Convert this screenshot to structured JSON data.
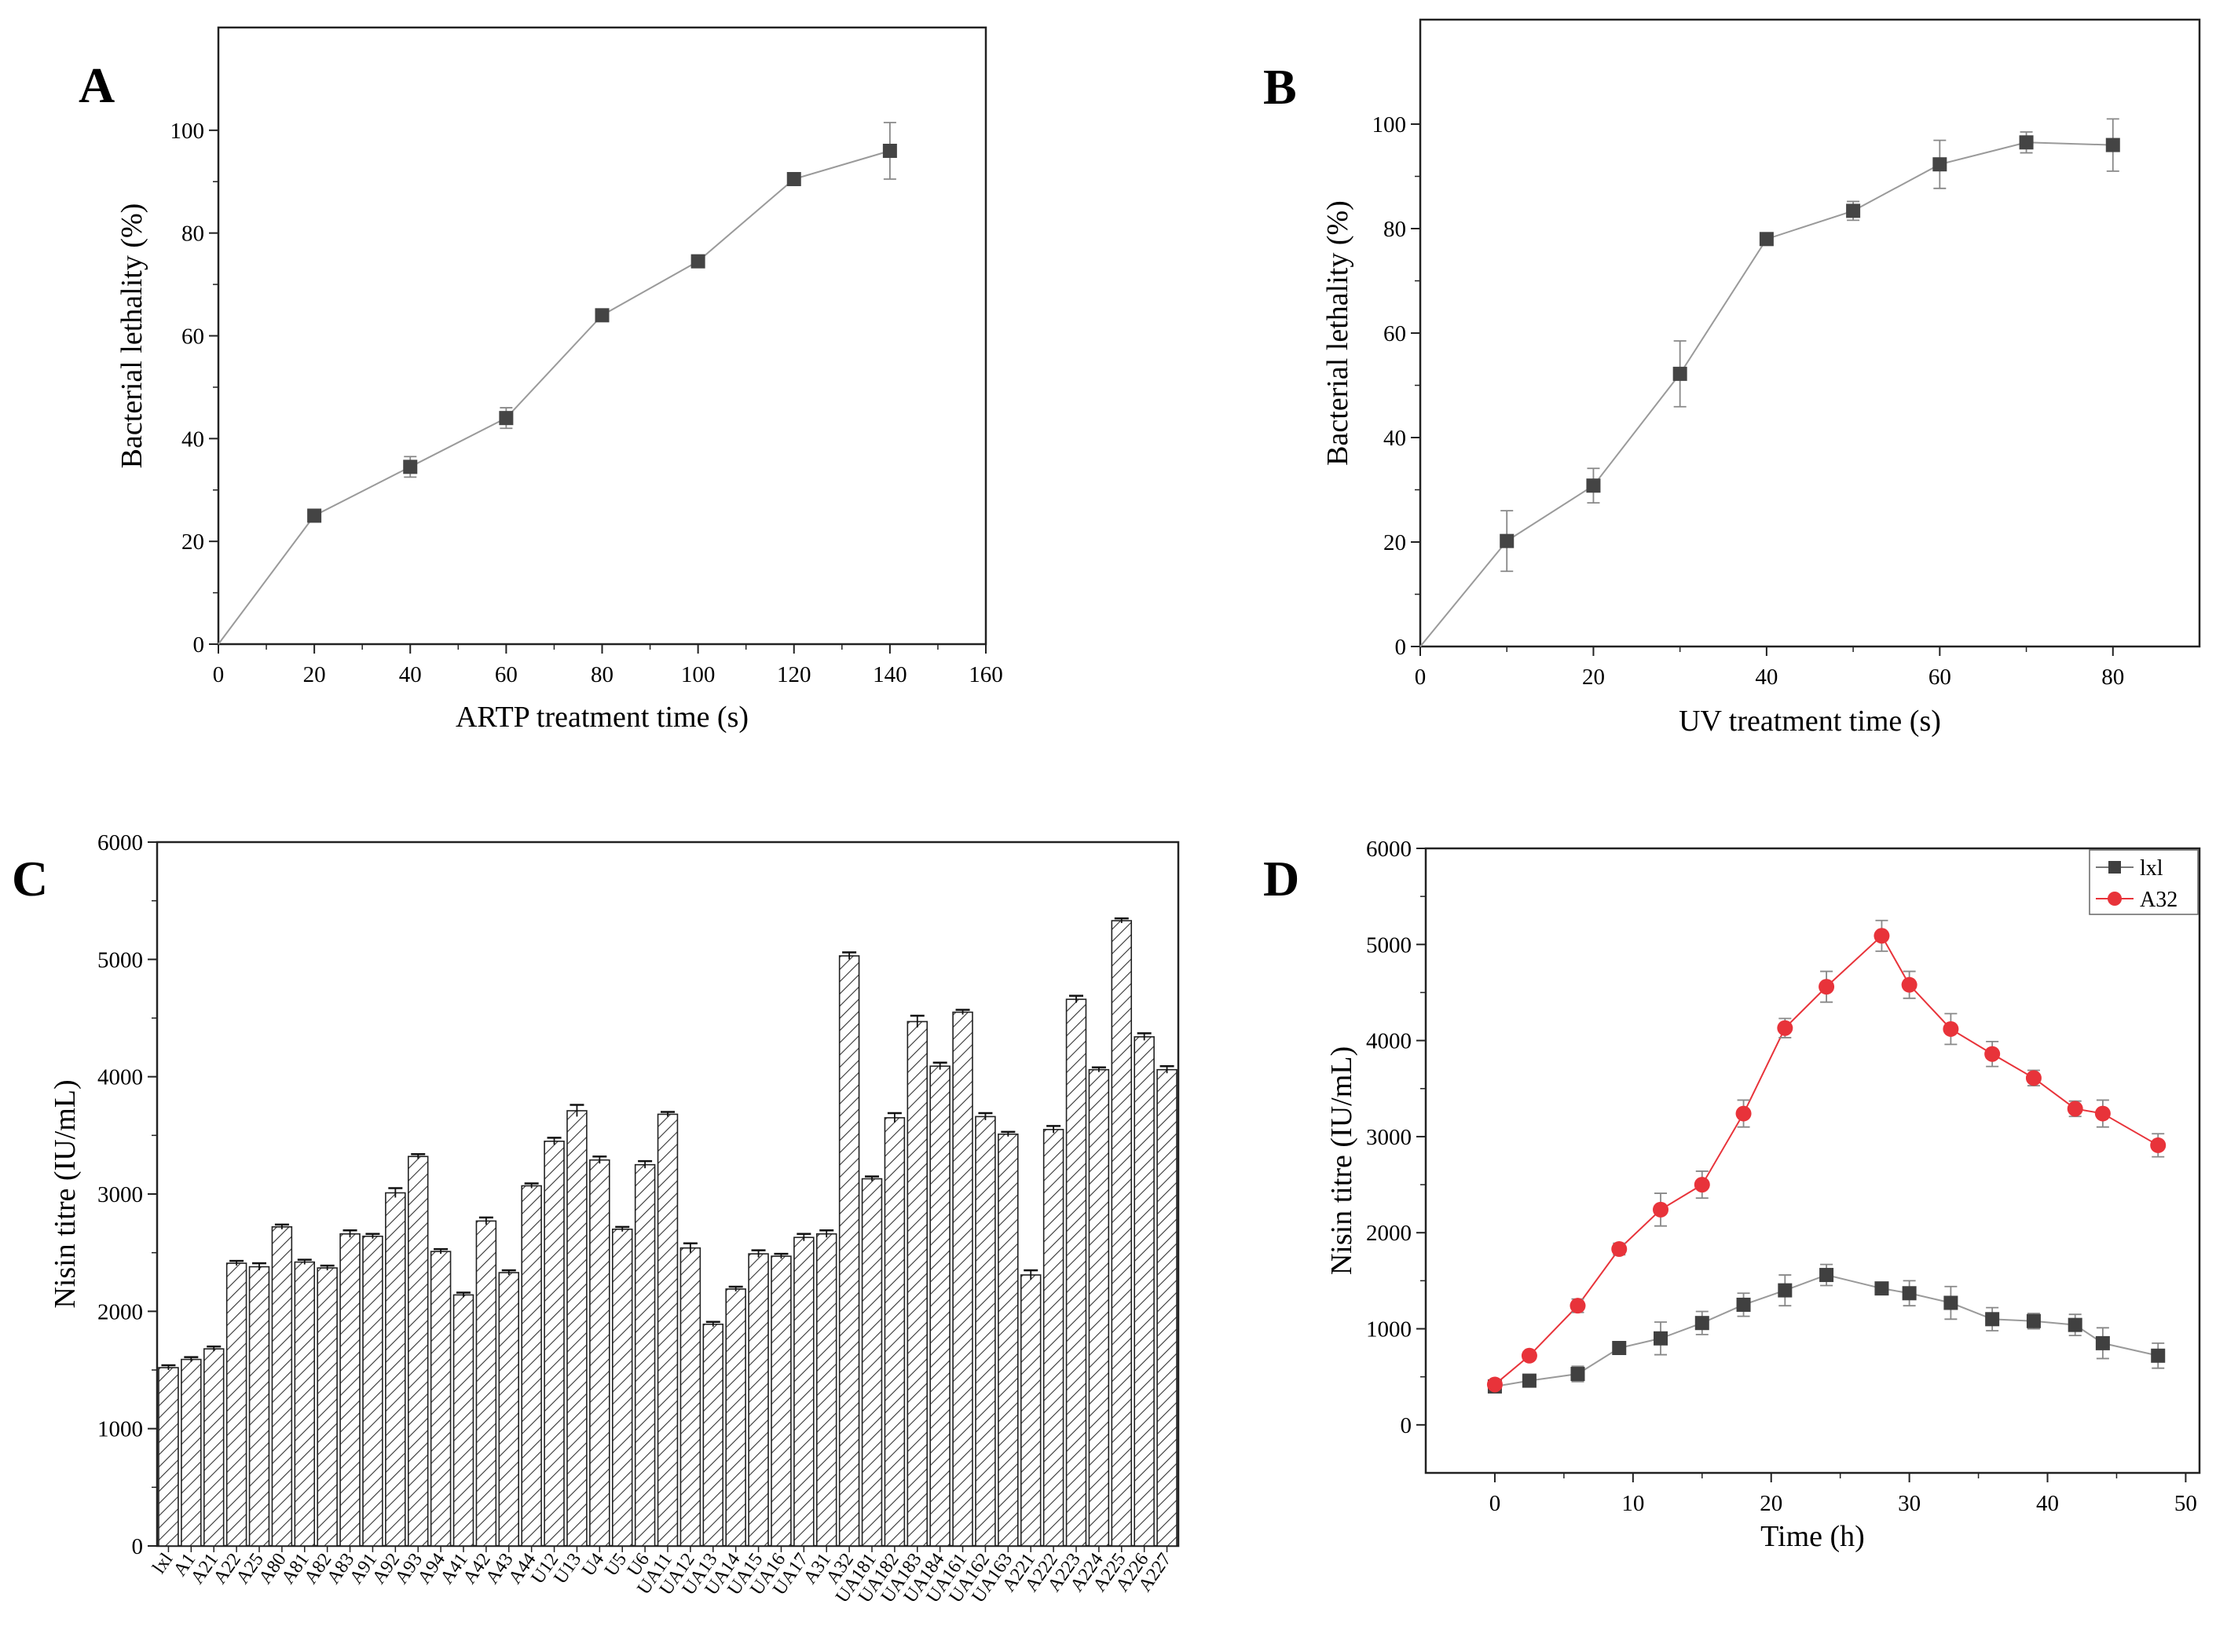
{
  "chart_data": [
    {
      "panel": "A",
      "type": "line",
      "xlabel": "ARTP treatment time (s)",
      "ylabel": "Bacterial lethality (%)",
      "xlim": [
        0,
        160
      ],
      "ylim": [
        0,
        120
      ],
      "xticks": [
        0,
        20,
        40,
        60,
        80,
        100,
        120,
        140,
        160
      ],
      "yticks": [
        0,
        20,
        40,
        60,
        80,
        100
      ],
      "series": [
        {
          "name": "lethality",
          "color": "#444444",
          "marker": "square",
          "x": [
            0,
            20,
            40,
            60,
            80,
            100,
            120,
            140
          ],
          "y": [
            0,
            25,
            34.5,
            44,
            64,
            74.5,
            90.5,
            96
          ],
          "err": [
            0,
            0.5,
            2,
            2,
            0.5,
            0.5,
            1,
            5.5
          ]
        }
      ]
    },
    {
      "panel": "B",
      "type": "line",
      "xlabel": "UV treatment time (s)",
      "ylabel": "Bacterial lethality (%)",
      "xlim": [
        0,
        90
      ],
      "ylim": [
        0,
        120
      ],
      "xticks": [
        0,
        20,
        40,
        60,
        80
      ],
      "yticks": [
        0,
        20,
        40,
        60,
        80,
        100
      ],
      "series": [
        {
          "name": "lethality",
          "color": "#444444",
          "marker": "square",
          "x": [
            0,
            10,
            20,
            30,
            40,
            50,
            60,
            70,
            80
          ],
          "y": [
            0,
            20.2,
            30.8,
            52.2,
            78,
            83.4,
            92.3,
            96.5,
            96
          ],
          "err": [
            0,
            5.8,
            3.3,
            6.3,
            0.5,
            1.8,
            4.6,
            2,
            5
          ]
        }
      ]
    },
    {
      "panel": "C",
      "type": "bar",
      "ylabel": "Nisin titre (IU/mL)",
      "ylim": [
        0,
        6000
      ],
      "yticks": [
        0,
        1000,
        2000,
        3000,
        4000,
        5000,
        6000
      ],
      "categories": [
        "lxl",
        "A1",
        "A21",
        "A22",
        "A25",
        "A80",
        "A81",
        "A82",
        "A83",
        "A91",
        "A92",
        "A93",
        "A94",
        "A41",
        "A42",
        "A43",
        "A44",
        "U12",
        "U13",
        "U4",
        "U5",
        "U6",
        "UA11",
        "UA12",
        "UA13",
        "UA14",
        "UA15",
        "UA16",
        "UA17",
        "A31",
        "A32",
        "UA181",
        "UA182",
        "UA183",
        "UA184",
        "UA161",
        "UA162",
        "UA163",
        "A221",
        "A222",
        "A223",
        "A224",
        "A225",
        "A226",
        "A227"
      ],
      "values": [
        1520,
        1590,
        1680,
        2410,
        2380,
        2720,
        2420,
        2370,
        2660,
        2640,
        3010,
        3320,
        2510,
        2140,
        2770,
        2330,
        3070,
        3450,
        3710,
        3290,
        2700,
        3250,
        3680,
        2540,
        1890,
        2190,
        2490,
        2470,
        2630,
        2660,
        5030,
        3130,
        3650,
        4470,
        4090,
        4550,
        3660,
        3510,
        2310,
        3550,
        4660,
        4060,
        5330,
        4340,
        4060
      ],
      "err": [
        20,
        20,
        20,
        20,
        30,
        20,
        20,
        20,
        30,
        20,
        40,
        20,
        20,
        20,
        30,
        20,
        20,
        30,
        50,
        30,
        20,
        30,
        20,
        40,
        20,
        20,
        30,
        20,
        30,
        30,
        30,
        20,
        40,
        50,
        30,
        20,
        30,
        20,
        40,
        30,
        30,
        20,
        20,
        30,
        30
      ]
    },
    {
      "panel": "D",
      "type": "line",
      "xlabel": "Time (h)",
      "ylabel": "Nisin titre (IU/mL)",
      "xlim": [
        -5,
        51
      ],
      "ylim": [
        -500,
        6000
      ],
      "xticks": [
        0,
        10,
        20,
        30,
        40,
        50
      ],
      "yticks": [
        0,
        1000,
        2000,
        3000,
        4000,
        5000,
        6000
      ],
      "legend": "top-right",
      "series": [
        {
          "name": "lxl",
          "color": "#404040",
          "marker": "square",
          "x": [
            0,
            2.5,
            6,
            9,
            12,
            15,
            18,
            21,
            24,
            28,
            30,
            33,
            36,
            39,
            42,
            44,
            48
          ],
          "y": [
            400,
            460,
            530,
            800,
            900,
            1060,
            1250,
            1400,
            1560,
            1420,
            1370,
            1270,
            1100,
            1080,
            1040,
            850,
            720
          ],
          "err": [
            40,
            40,
            80,
            60,
            170,
            120,
            120,
            160,
            110,
            60,
            130,
            170,
            120,
            80,
            110,
            160,
            130
          ]
        },
        {
          "name": "A32",
          "color": "#e8333a",
          "marker": "circle",
          "x": [
            0,
            2.5,
            6,
            9,
            12,
            15,
            18,
            21,
            24,
            28,
            30,
            33,
            36,
            39,
            42,
            44,
            48
          ],
          "y": [
            420,
            720,
            1240,
            1830,
            2240,
            2500,
            3240,
            4130,
            4560,
            5090,
            4580,
            4120,
            3860,
            3610,
            3290,
            3240,
            2910
          ],
          "err": [
            40,
            40,
            70,
            60,
            170,
            140,
            140,
            100,
            160,
            160,
            140,
            160,
            130,
            80,
            80,
            140,
            120
          ]
        }
      ]
    }
  ]
}
